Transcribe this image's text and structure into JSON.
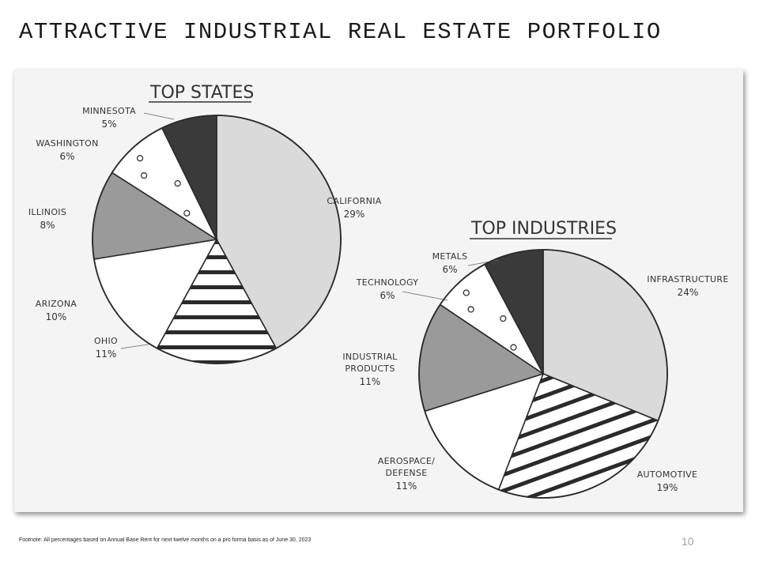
{
  "slide": {
    "title": "ATTRACTIVE INDUSTRIAL REAL ESTATE PORTFOLIO",
    "footnote": "Footnote: All percentages based on Annual Base Rent for next twelve months on a pro forma basis as of June 30, 2023",
    "page_number": "10"
  },
  "colors": {
    "light_gray": "#dadada",
    "mid_gray": "#9a9a9a",
    "dark_gray": "#3a3a3a",
    "white": "#ffffff",
    "outline": "#2a2a2a"
  },
  "chart_data": [
    {
      "type": "pie",
      "title": "TOP STATES",
      "slices": [
        {
          "label": [
            "CALIFORNIA"
          ],
          "value": 29,
          "display": "29%",
          "fill": "light"
        },
        {
          "label": [
            "OHIO"
          ],
          "value": 11,
          "display": "11%",
          "fill": "stripes"
        },
        {
          "label": [
            "ARIZONA"
          ],
          "value": 10,
          "display": "10%",
          "fill": "white"
        },
        {
          "label": [
            "ILLINOIS"
          ],
          "value": 8,
          "display": "8%",
          "fill": "mid"
        },
        {
          "label": [
            "WASHINGTON"
          ],
          "value": 6,
          "display": "6%",
          "fill": "dots"
        },
        {
          "label": [
            "MINNESOTA"
          ],
          "value": 5,
          "display": "5%",
          "fill": "dark"
        }
      ]
    },
    {
      "type": "pie",
      "title": "TOP INDUSTRIES",
      "slices": [
        {
          "label": [
            "INFRASTRUCTURE"
          ],
          "value": 24,
          "display": "24%",
          "fill": "light"
        },
        {
          "label": [
            "AUTOMOTIVE"
          ],
          "value": 19,
          "display": "19%",
          "fill": "stripes"
        },
        {
          "label": [
            "AEROSPACE/",
            "DEFENSE"
          ],
          "value": 11,
          "display": "11%",
          "fill": "white"
        },
        {
          "label": [
            "INDUSTRIAL",
            "PRODUCTS"
          ],
          "value": 11,
          "display": "11%",
          "fill": "mid"
        },
        {
          "label": [
            "TECHNOLOGY"
          ],
          "value": 6,
          "display": "6%",
          "fill": "dots"
        },
        {
          "label": [
            "METALS"
          ],
          "value": 6,
          "display": "6%",
          "fill": "dark"
        }
      ]
    }
  ]
}
